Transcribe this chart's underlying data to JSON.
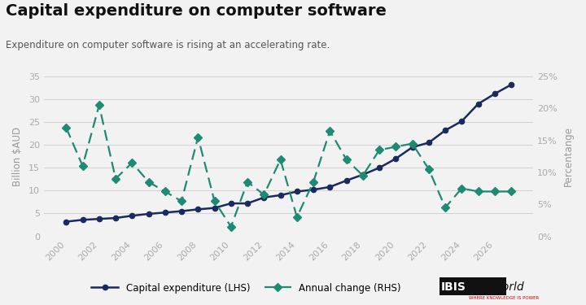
{
  "title": "Capital expenditure on computer software",
  "subtitle": "Expenditure on computer software is rising at an accelerating rate.",
  "ylabel_left": "Billion $AUD",
  "ylabel_right": "Percentange",
  "bg_color": "#f2f2f2",
  "plot_bg_color": "#f2f2f2",
  "years_capex": [
    2000,
    2001,
    2002,
    2003,
    2004,
    2005,
    2006,
    2007,
    2008,
    2009,
    2010,
    2011,
    2012,
    2013,
    2014,
    2015,
    2016,
    2017,
    2018,
    2019,
    2020,
    2021,
    2022,
    2023,
    2024,
    2025,
    2026,
    2027
  ],
  "capex": [
    3.2,
    3.6,
    3.8,
    4.0,
    4.5,
    4.9,
    5.2,
    5.5,
    5.9,
    6.2,
    7.2,
    7.2,
    8.5,
    9.0,
    9.8,
    10.2,
    10.8,
    12.2,
    13.5,
    15.0,
    17.0,
    19.5,
    20.5,
    23.2,
    25.2,
    29.0,
    31.2,
    33.2
  ],
  "years_ac": [
    2000,
    2001,
    2002,
    2003,
    2004,
    2005,
    2006,
    2007,
    2008,
    2009,
    2010,
    2011,
    2012,
    2013,
    2014,
    2015,
    2016,
    2017,
    2018,
    2019,
    2020,
    2021,
    2022,
    2023,
    2024,
    2025,
    2026,
    2027
  ],
  "annual_change": [
    17.0,
    11.0,
    20.5,
    9.0,
    11.5,
    8.5,
    7.0,
    5.5,
    15.5,
    5.5,
    1.5,
    8.5,
    6.5,
    12.0,
    3.0,
    8.5,
    16.5,
    12.0,
    9.5,
    13.5,
    14.0,
    14.5,
    10.5,
    4.5,
    7.5,
    7.0,
    7.0,
    7.0
  ],
  "capex_color": "#1b2a5e",
  "annual_color": "#1e8a72",
  "ylim_left": [
    0,
    35
  ],
  "ylim_right": [
    0,
    0.25
  ],
  "yticks_left": [
    0,
    5,
    10,
    15,
    20,
    25,
    30,
    35
  ],
  "yticks_right": [
    0.0,
    0.05,
    0.1,
    0.15,
    0.2,
    0.25
  ],
  "ytick_labels_right": [
    "0%",
    "5%",
    "10%",
    "15%",
    "20%",
    "25%"
  ],
  "xticks": [
    2000,
    2002,
    2004,
    2006,
    2008,
    2010,
    2012,
    2014,
    2016,
    2018,
    2020,
    2022,
    2024,
    2026
  ],
  "legend_capex": "Capital expenditure (LHS)",
  "legend_ac": "Annual change (RHS)"
}
